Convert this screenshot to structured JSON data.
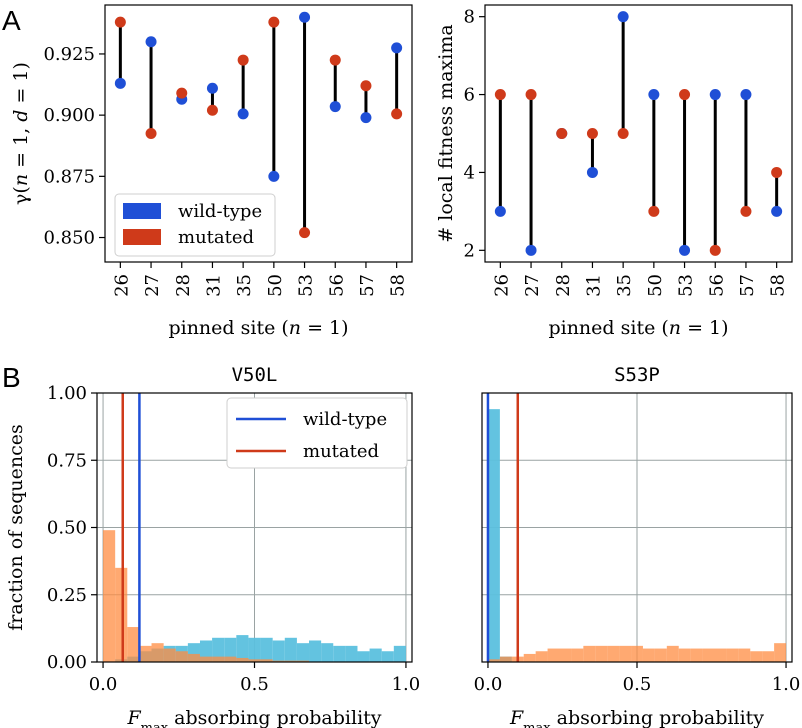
{
  "colors": {
    "wild_type": "#1f4fd6",
    "mutated": "#cf3a1a",
    "hist_wild_type": "#5bc0de",
    "hist_mutated": "#ff8c42",
    "overlap": "#9a7a55",
    "grid": "#9aa3a3"
  },
  "panel_labels": {
    "a": "A",
    "b": "B"
  },
  "chart_data": [
    {
      "id": "A-left",
      "type": "dumbbell",
      "title": "",
      "xlabel": "pinned site (n = 1)",
      "ylabel": "γ(n = 1, d = 1)",
      "categories": [
        "26",
        "27",
        "28",
        "31",
        "35",
        "50",
        "53",
        "56",
        "57",
        "58"
      ],
      "ylim": [
        0.84,
        0.945
      ],
      "yticks": [
        0.85,
        0.875,
        0.9,
        0.925
      ],
      "ytick_labels": [
        "0.850",
        "0.875",
        "0.900",
        "0.925"
      ],
      "series": [
        {
          "name": "wild-type",
          "values": [
            0.913,
            0.93,
            0.9065,
            0.911,
            0.9005,
            0.875,
            0.94,
            0.9035,
            0.899,
            0.9275
          ]
        },
        {
          "name": "mutated",
          "values": [
            0.938,
            0.8925,
            0.909,
            0.902,
            0.9225,
            0.938,
            0.852,
            0.9225,
            0.912,
            0.9005
          ]
        }
      ],
      "legend": {
        "position": "bottom-left",
        "entries": [
          "wild-type",
          "mutated"
        ]
      }
    },
    {
      "id": "A-right",
      "type": "dumbbell",
      "title": "",
      "xlabel": "pinned site (n = 1)",
      "ylabel": "# local fitness maxima",
      "categories": [
        "26",
        "27",
        "28",
        "31",
        "35",
        "50",
        "53",
        "56",
        "57",
        "58"
      ],
      "ylim": [
        1.7,
        8.3
      ],
      "yticks": [
        2,
        4,
        6,
        8
      ],
      "ytick_labels": [
        "2",
        "4",
        "6",
        "8"
      ],
      "series": [
        {
          "name": "wild-type",
          "values": [
            3,
            2,
            5,
            4,
            8,
            6,
            2,
            6,
            6,
            3
          ]
        },
        {
          "name": "mutated",
          "values": [
            6,
            6,
            5,
            5,
            5,
            3,
            6,
            2,
            3,
            4
          ]
        }
      ]
    },
    {
      "id": "B-left",
      "type": "histogram",
      "title": "V50L",
      "xlabel": "F_max absorbing probability",
      "ylabel": "fraction of sequences",
      "xlim": [
        -0.02,
        1.02
      ],
      "ylim": [
        0,
        1
      ],
      "xticks": [
        0,
        0.5,
        1
      ],
      "xtick_labels": [
        "0.0",
        "0.5",
        "1.0"
      ],
      "yticks": [
        0,
        0.25,
        0.5,
        0.75,
        1
      ],
      "ytick_labels": [
        "0.00",
        "0.25",
        "0.50",
        "0.75",
        "1.00"
      ],
      "bin_width": 0.04,
      "bins_start": 0,
      "series": [
        {
          "name": "wild-type",
          "values": [
            0.0,
            0.01,
            0.02,
            0.04,
            0.05,
            0.06,
            0.06,
            0.07,
            0.08,
            0.09,
            0.09,
            0.1,
            0.09,
            0.09,
            0.08,
            0.09,
            0.07,
            0.08,
            0.07,
            0.06,
            0.06,
            0.04,
            0.05,
            0.04,
            0.06
          ]
        },
        {
          "name": "mutated",
          "values": [
            0.49,
            0.35,
            0.13,
            0.06,
            0.07,
            0.05,
            0.04,
            0.03,
            0.02,
            0.02,
            0.02,
            0.015,
            0.01,
            0.01,
            0.005,
            0.005,
            0.005,
            0.0,
            0.0,
            0.0,
            0.0,
            0.0,
            0.0,
            0.0,
            0.0
          ]
        }
      ],
      "vlines": [
        {
          "name": "wild-type",
          "x": 0.12
        },
        {
          "name": "mutated",
          "x": 0.065
        }
      ],
      "legend": {
        "position": "top-right",
        "entries": [
          "wild-type",
          "mutated"
        ]
      }
    },
    {
      "id": "B-right",
      "type": "histogram",
      "title": "S53P",
      "xlabel": "F_max absorbing probability",
      "ylabel": "",
      "xlim": [
        -0.02,
        1.02
      ],
      "ylim": [
        0,
        1
      ],
      "xticks": [
        0,
        0.5,
        1
      ],
      "xtick_labels": [
        "0.0",
        "0.5",
        "1.0"
      ],
      "bin_width": 0.04,
      "bins_start": 0,
      "series": [
        {
          "name": "wild-type",
          "values": [
            0.94,
            0.02,
            0.0,
            0.0,
            0.0,
            0.0,
            0.0,
            0.0,
            0.0,
            0.0,
            0.0,
            0.0,
            0.0,
            0.0,
            0.0,
            0.0,
            0.0,
            0.0,
            0.0,
            0.0,
            0.0,
            0.0,
            0.0,
            0.0,
            0.0
          ]
        },
        {
          "name": "mutated",
          "values": [
            0.01,
            0.02,
            0.02,
            0.03,
            0.04,
            0.05,
            0.05,
            0.05,
            0.06,
            0.06,
            0.06,
            0.06,
            0.06,
            0.05,
            0.05,
            0.06,
            0.05,
            0.05,
            0.05,
            0.05,
            0.05,
            0.05,
            0.04,
            0.04,
            0.07
          ]
        }
      ],
      "vlines": [
        {
          "name": "wild-type",
          "x": 0.0
        },
        {
          "name": "mutated",
          "x": 0.1
        }
      ]
    }
  ]
}
